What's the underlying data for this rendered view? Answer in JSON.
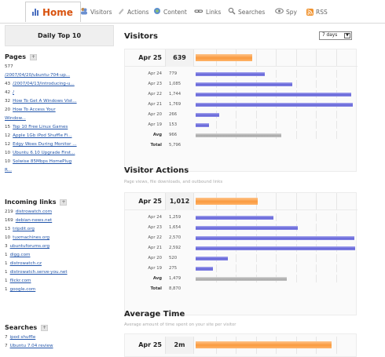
{
  "nav": {
    "home": "Home",
    "tabs": [
      {
        "label": "Visitors",
        "icon": "visitors-icon"
      },
      {
        "label": "Actions",
        "icon": "actions-icon"
      },
      {
        "label": "Content",
        "icon": "content-icon"
      },
      {
        "label": "Links",
        "icon": "links-icon"
      },
      {
        "label": "Searches",
        "icon": "searches-icon"
      },
      {
        "label": "Spy",
        "icon": "spy-icon"
      },
      {
        "label": "RSS",
        "icon": "rss-icon"
      }
    ]
  },
  "sidebar": {
    "title": "Daily Top 10",
    "pages": {
      "heading": "Pages",
      "items": [
        {
          "count": "577",
          "link": ""
        },
        {
          "count": "",
          "link": "/2007/04/20/ubuntu-704-up..."
        },
        {
          "count": "43",
          "link": "/2007/04/13/introducing-u..."
        },
        {
          "count": "42",
          "link": "/"
        },
        {
          "count": "32",
          "link": "How To Get A Windows Vist..."
        },
        {
          "count": "20",
          "link": "How To Access Your"
        },
        {
          "count": "",
          "link": "Window..."
        },
        {
          "count": "15",
          "link": "Top 10 Free Linux Games"
        },
        {
          "count": "12",
          "link": "Apple 1Gb iPod Shuffle Fi..."
        },
        {
          "count": "12",
          "link": "Edgy Woes During Monitor ..."
        },
        {
          "count": "10",
          "link": "Ubuntu 6.10 Upgrade First..."
        },
        {
          "count": "10",
          "link": "Solwise 85Mbps HomePlug"
        },
        {
          "count": "",
          "link": "R..."
        }
      ]
    },
    "incoming": {
      "heading": "Incoming links",
      "items": [
        {
          "count": "219",
          "link": "distrowatch.com"
        },
        {
          "count": "169",
          "link": "debian-news.net"
        },
        {
          "count": "13",
          "link": "tripdit.org"
        },
        {
          "count": "10",
          "link": "tuxmachines.org"
        },
        {
          "count": "3",
          "link": "ubuntuforums.org"
        },
        {
          "count": "1",
          "link": "digg.com"
        },
        {
          "count": "1",
          "link": "distrowatch.cz"
        },
        {
          "count": "1",
          "link": "distrowatch.serve-you.net"
        },
        {
          "count": "1",
          "link": "flickr.com"
        },
        {
          "count": "1",
          "link": "google.com"
        }
      ]
    },
    "searches": {
      "heading": "Searches",
      "items": [
        {
          "count": "7",
          "link": "ipod shuffle"
        },
        {
          "count": "7",
          "link": "Ubuntu 7.04 review"
        }
      ]
    }
  },
  "main": {
    "range_select": "7 days",
    "visitors": {
      "title": "Visitors",
      "subtitle": "",
      "max": 1800,
      "today": {
        "label": "Apr 25",
        "value": "639",
        "num": 639
      },
      "rows": [
        {
          "label": "Apr 24",
          "value": "779",
          "num": 779
        },
        {
          "label": "Apr 23",
          "value": "1,085",
          "num": 1085
        },
        {
          "label": "Apr 22",
          "value": "1,744",
          "num": 1744
        },
        {
          "label": "Apr 21",
          "value": "1,769",
          "num": 1769
        },
        {
          "label": "Apr 20",
          "value": "266",
          "num": 266
        },
        {
          "label": "Apr 19",
          "value": "153",
          "num": 153
        }
      ],
      "avg": {
        "label": "Avg",
        "value": "966",
        "num": 966
      },
      "total": {
        "label": "Total",
        "value": "5,796"
      }
    },
    "actions": {
      "title": "Visitor Actions",
      "subtitle": "Page views, file downloads, and outbound links",
      "max": 2600,
      "today": {
        "label": "Apr 25",
        "value": "1,012",
        "num": 1012
      },
      "rows": [
        {
          "label": "Apr 24",
          "value": "1,259",
          "num": 1259
        },
        {
          "label": "Apr 23",
          "value": "1,654",
          "num": 1654
        },
        {
          "label": "Apr 22",
          "value": "2,570",
          "num": 2570
        },
        {
          "label": "Apr 21",
          "value": "2,592",
          "num": 2592
        },
        {
          "label": "Apr 20",
          "value": "520",
          "num": 520
        },
        {
          "label": "Apr 19",
          "value": "275",
          "num": 275
        }
      ],
      "avg": {
        "label": "Avg",
        "value": "1,479",
        "num": 1479
      },
      "total": {
        "label": "Total",
        "value": "8,870"
      }
    },
    "avgtime": {
      "title": "Average Time",
      "subtitle": "Average amount of time spent on your site per visitor",
      "today": {
        "label": "Apr 25",
        "value": "2m",
        "fraction": 0.85
      }
    }
  }
}
